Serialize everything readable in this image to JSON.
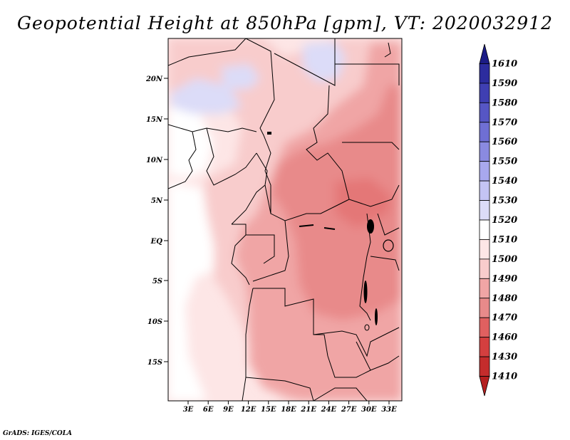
{
  "title": "Geopotential Height at 850hPa [gpm], VT: 2020032912",
  "credit": "GrADS: IGES/COLA",
  "colors": {
    "c1410": "#b41f1f",
    "c1430": "#c42c2c",
    "c1460": "#d43f3f",
    "c1470": "#e06060",
    "c1480": "#e88a8a",
    "c1490": "#f0a5a5",
    "c1500": "#f8cccc",
    "c1510": "#fde6e6",
    "c1520": "#ffffff",
    "c1530": "#dcdcf8",
    "c1540": "#c4c4f4",
    "c1550": "#a8a8ee",
    "c1560": "#8a8ae0",
    "c1570": "#6f6fd4",
    "c1580": "#5656c4",
    "c1590": "#3f3fb2",
    "c1600": "#2c2c9e",
    "c1610": "#1c1c86"
  },
  "lat_labels": [
    "20N",
    "15N",
    "10N",
    "5N",
    "EQ",
    "5S",
    "10S",
    "15S"
  ],
  "lon_labels": [
    "3E",
    "6E",
    "9E",
    "12E",
    "15E",
    "18E",
    "21E",
    "24E",
    "27E",
    "30E",
    "33E"
  ],
  "colorbar": {
    "labels": [
      "1610",
      "1590",
      "1580",
      "1570",
      "1560",
      "1550",
      "1540",
      "1530",
      "1520",
      "1510",
      "1500",
      "1490",
      "1480",
      "1470",
      "1460",
      "1430",
      "1410"
    ]
  }
}
